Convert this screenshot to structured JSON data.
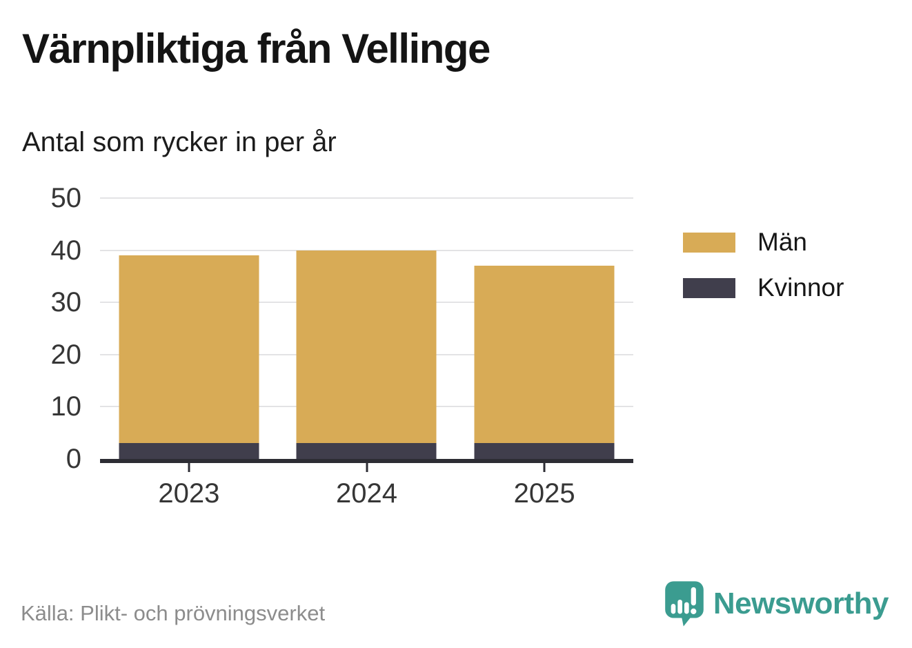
{
  "header": {
    "title": "Värnpliktiga från Vellinge",
    "subtitle": "Antal som rycker in per år"
  },
  "footer": {
    "source": "Källa: Plikt- och prövningsverket",
    "brand": "Newsworthy"
  },
  "colors": {
    "man_gold": "#d8ab56",
    "kvinnor_dark": "#403e4c",
    "axis": "#2d2d34",
    "gridline": "#e3e3e5",
    "tick_label": "#363636",
    "source_text": "#8c8c8c",
    "brand_teal": "#3b9c90",
    "background": "#ffffff"
  },
  "chart_data": {
    "type": "bar",
    "stacked": true,
    "title": "Värnpliktiga från Vellinge",
    "subtitle": "Antal som rycker in per år",
    "categories": [
      "2023",
      "2024",
      "2025"
    ],
    "series": [
      {
        "name": "Män",
        "color": "#d8ab56",
        "values": [
          36,
          37,
          34
        ]
      },
      {
        "name": "Kvinnor",
        "color": "#403e4c",
        "values": [
          3,
          3,
          3
        ]
      }
    ],
    "totals": [
      39,
      40,
      37
    ],
    "stack_order_bottom_to_top": [
      "Kvinnor",
      "Män"
    ],
    "xlabel": "",
    "ylabel": "",
    "ylim": [
      0,
      50
    ],
    "yticks": [
      0,
      10,
      20,
      30,
      40,
      50
    ],
    "grid": "horizontal",
    "legend_position": "right"
  }
}
